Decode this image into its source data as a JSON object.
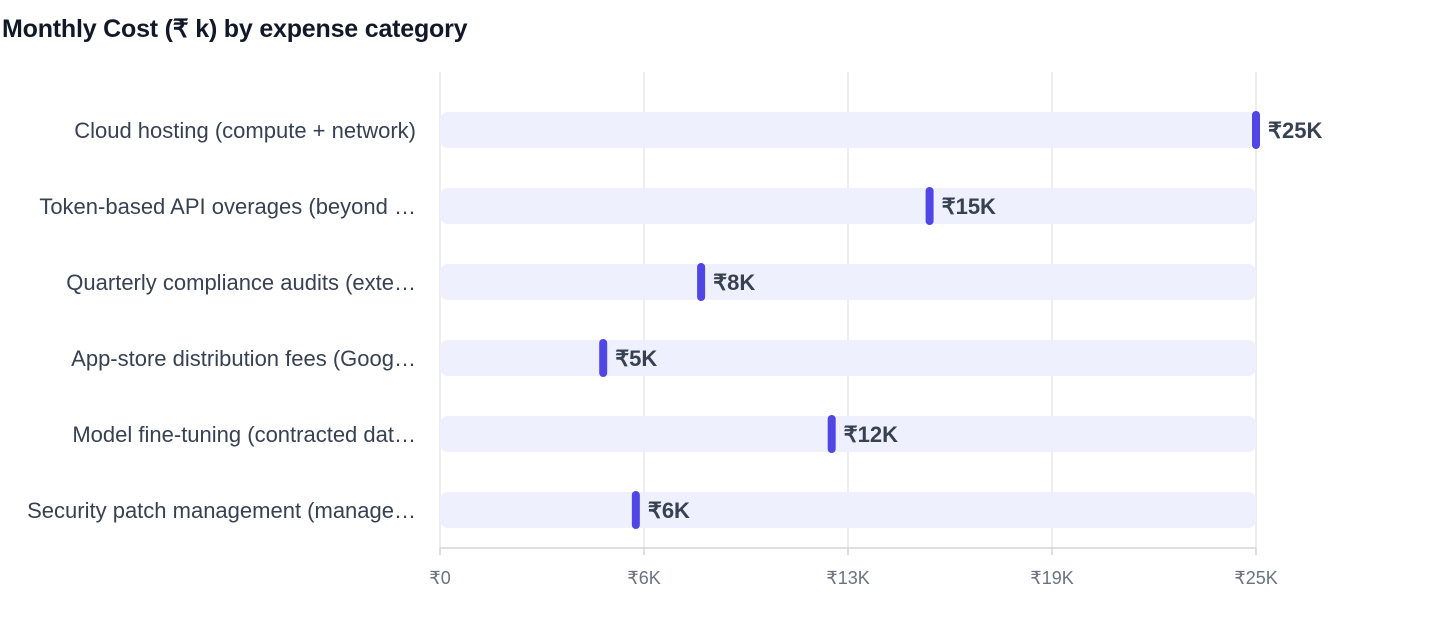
{
  "title": "Monthly Cost (₹ k) by expense category",
  "chart_data": {
    "type": "bar",
    "title": "Monthly Cost (₹ k) by expense category",
    "xlabel": "",
    "ylabel": "",
    "orientation": "horizontal",
    "style": "track-with-marker",
    "grid": true,
    "xlim": [
      0,
      25
    ],
    "ticks": [
      0,
      6.25,
      12.5,
      18.75,
      25
    ],
    "tick_labels": [
      "₹0",
      "₹6K",
      "₹13K",
      "₹19K",
      "₹25K"
    ],
    "categories": [
      "Cloud hosting (compute + network)",
      "Token-based API overages (beyond …",
      "Quarterly compliance audits (exte…",
      "App-store distribution fees (Goog…",
      "Model fine-tuning (contracted dat…",
      "Security patch management (manage…"
    ],
    "values": [
      25,
      15,
      8,
      5,
      12,
      6
    ],
    "value_labels": [
      "₹25K",
      "₹15K",
      "₹8K",
      "₹5K",
      "₹12K",
      "₹6K"
    ],
    "colors": {
      "marker": "#4f46e5",
      "track": "#eef1fd",
      "grid": "#e5e7eb",
      "axis": "#d1d5db"
    }
  }
}
